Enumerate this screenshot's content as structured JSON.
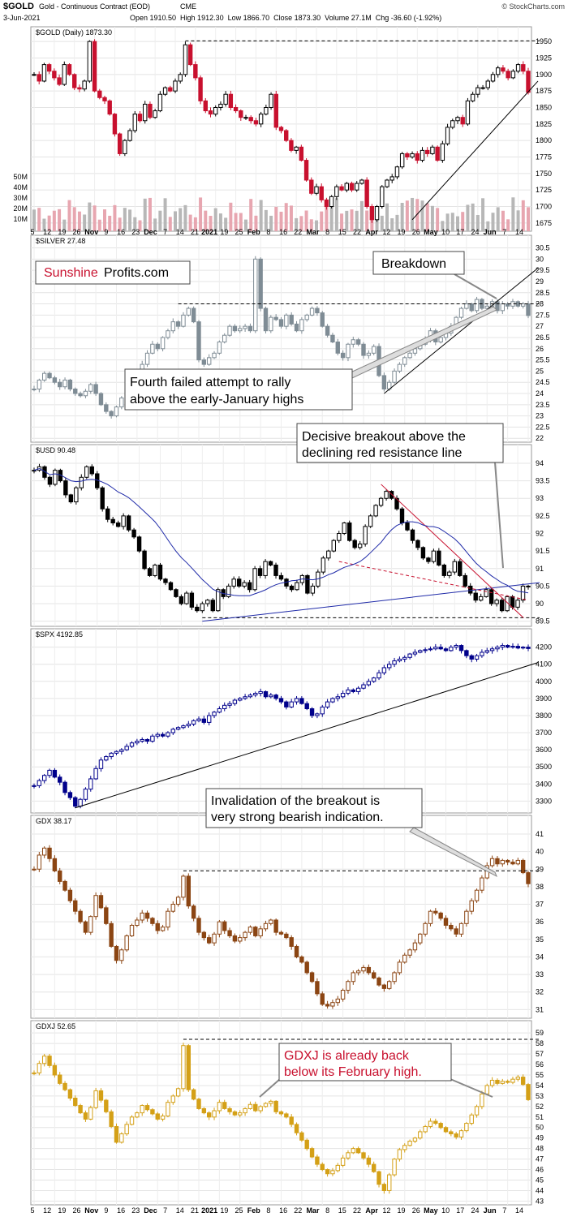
{
  "header": {
    "symbol": "$GOLD",
    "description": "Gold - Continuous Contract (EOD)",
    "exchange": "CME",
    "watermark": "© StockCharts.com",
    "date": "3-Jun-2021",
    "ohlc_text": "Open 1910.50  High 1912.30  Low 1866.70  Close 1873.30  Volume 27.1M  Chg -36.60 (-1.92%)"
  },
  "x_axis_ticks": [
    "5",
    "12",
    "19",
    "26",
    "Nov",
    "9",
    "16",
    "23",
    "Dec",
    "7",
    "14",
    "21",
    "2021",
    "19",
    "25",
    "Feb",
    "8",
    "16",
    "22",
    "Mar",
    "8",
    "15",
    "22",
    "Apr",
    "12",
    "19",
    "26",
    "May",
    "10",
    "17",
    "24",
    "Jun",
    "7",
    "14"
  ],
  "watermark_box": {
    "part1": "Sunshine",
    "part2": "Profits.com"
  },
  "annotations": {
    "breakdown": "Breakdown",
    "fourth_line1": "Fourth failed attempt to rally",
    "fourth_line2": "above the early-January highs",
    "usd_line1": "Decisive breakout above the",
    "usd_line2": "declining red resistance line",
    "gdx_line1": "Invalidation of the breakout is",
    "gdx_line2": "very strong bearish indication.",
    "gdxj_line1": "GDXJ is already back",
    "gdxj_line2": "below its February high."
  },
  "colors": {
    "up": "#000000",
    "down": "#c8102e",
    "silver": "#7f8c95",
    "usd": "#000000",
    "spx": "#00008b",
    "gdx": "#8b4513",
    "gdxj": "#d4a017",
    "ma": "#1f2aa8"
  },
  "chart_data": [
    {
      "type": "candlestick",
      "title": "$GOLD (Daily) 1873.30",
      "y_ticks": [
        1675,
        1700,
        1725,
        1750,
        1775,
        1800,
        1825,
        1850,
        1875,
        1900,
        1925,
        1950
      ],
      "ylim": [
        1665,
        1960
      ],
      "volume_ticks": [
        "50M",
        "40M",
        "30M",
        "20M",
        "10M"
      ],
      "path": [
        1900,
        1890,
        1915,
        1905,
        1895,
        1885,
        1915,
        1900,
        1880,
        1878,
        1890,
        1950,
        1875,
        1865,
        1860,
        1840,
        1810,
        1780,
        1800,
        1815,
        1840,
        1830,
        1855,
        1835,
        1845,
        1870,
        1880,
        1875,
        1890,
        1900,
        1945,
        1915,
        1895,
        1860,
        1845,
        1840,
        1850,
        1855,
        1870,
        1850,
        1845,
        1835,
        1835,
        1830,
        1825,
        1840,
        1850,
        1870,
        1820,
        1815,
        1800,
        1785,
        1790,
        1770,
        1740,
        1720,
        1730,
        1710,
        1700,
        1715,
        1730,
        1725,
        1735,
        1725,
        1735,
        1740,
        1700,
        1680,
        1700,
        1730,
        1740,
        1745,
        1760,
        1780,
        1775,
        1780,
        1770,
        1785,
        1780,
        1790,
        1770,
        1795,
        1820,
        1830,
        1835,
        1825,
        1860,
        1870,
        1880,
        1880,
        1890,
        1900,
        1910,
        1905,
        1895,
        1905,
        1915,
        1905,
        1873
      ]
    },
    {
      "type": "candlestick",
      "title": "$SILVER 27.48",
      "y_ticks": [
        22,
        22.5,
        23,
        23.5,
        24,
        24.5,
        25,
        25.5,
        26,
        26.5,
        27,
        27.5,
        28,
        28.5,
        29,
        29.5,
        30,
        30.5
      ],
      "ylim": [
        21.9,
        30.7
      ],
      "path": [
        24.2,
        24.6,
        24.9,
        24.7,
        24.5,
        24.3,
        24.6,
        24.2,
        24.0,
        23.9,
        24.1,
        24.4,
        24.0,
        23.5,
        23.2,
        23.0,
        23.4,
        23.8,
        24.2,
        24.5,
        24.8,
        25.3,
        25.8,
        26.2,
        26.0,
        26.5,
        26.8,
        27.2,
        27.0,
        27.5,
        27.8,
        27.2,
        25.5,
        25.3,
        25.6,
        25.8,
        26.3,
        26.6,
        27.0,
        26.8,
        26.9,
        27.0,
        26.8,
        30.0,
        27.8,
        26.8,
        27.4,
        27.3,
        27.0,
        27.5,
        27.1,
        26.8,
        27.3,
        27.5,
        27.8,
        27.6,
        27.0,
        26.6,
        26.3,
        25.8,
        25.6,
        26.2,
        26.4,
        26.2,
        25.7,
        25.8,
        26.1,
        24.8,
        24.2,
        24.5,
        25.0,
        25.3,
        25.6,
        25.8,
        26.0,
        26.2,
        26.4,
        26.8,
        26.3,
        26.5,
        26.7,
        27.0,
        27.4,
        27.8,
        28.0,
        27.7,
        28.2,
        27.8,
        27.9,
        28.1,
        27.7,
        28.0,
        27.9,
        28.1,
        27.9,
        28.0,
        27.48
      ]
    },
    {
      "type": "candlestick",
      "title": "$USD 90.48",
      "y_ticks": [
        89.5,
        90,
        90.5,
        91,
        91.5,
        92,
        92.5,
        93,
        93.5,
        94
      ],
      "ylim": [
        89.4,
        94.3
      ],
      "path": [
        93.8,
        93.9,
        93.6,
        93.4,
        93.8,
        93.5,
        93.1,
        92.9,
        93.3,
        93.6,
        93.9,
        93.7,
        93.3,
        92.7,
        92.4,
        92.3,
        92.2,
        92.5,
        92.1,
        91.9,
        91.5,
        91.0,
        90.8,
        91.1,
        90.7,
        90.6,
        90.4,
        90.2,
        90.0,
        90.3,
        89.9,
        89.8,
        90.0,
        90.1,
        89.8,
        90.4,
        90.2,
        90.5,
        90.7,
        90.5,
        90.6,
        90.4,
        91.0,
        90.8,
        91.2,
        91.1,
        90.8,
        90.7,
        90.5,
        90.4,
        90.6,
        90.8,
        90.3,
        90.5,
        90.9,
        91.3,
        91.5,
        91.8,
        92.0,
        92.3,
        91.8,
        91.6,
        91.7,
        92.2,
        92.5,
        92.8,
        93.0,
        93.2,
        93.0,
        92.7,
        92.3,
        92.1,
        91.8,
        91.6,
        91.3,
        91.2,
        91.5,
        91.1,
        90.8,
        90.9,
        91.2,
        90.8,
        90.5,
        90.3,
        90.1,
        90.2,
        90.4,
        90.0,
        90.1,
        89.8,
        90.2,
        89.9,
        90.1,
        90.5,
        90.48
      ]
    },
    {
      "type": "candlestick",
      "title": "$SPX 4192.85",
      "y_ticks": [
        3300,
        3400,
        3500,
        3600,
        3700,
        3800,
        3900,
        4000,
        4100,
        4200
      ],
      "ylim": [
        3240,
        4260
      ],
      "path": [
        3390,
        3420,
        3450,
        3480,
        3440,
        3410,
        3350,
        3320,
        3270,
        3310,
        3370,
        3430,
        3490,
        3540,
        3560,
        3580,
        3590,
        3600,
        3620,
        3640,
        3650,
        3660,
        3650,
        3680,
        3690,
        3680,
        3700,
        3720,
        3730,
        3740,
        3750,
        3770,
        3780,
        3760,
        3800,
        3820,
        3840,
        3860,
        3870,
        3890,
        3900,
        3910,
        3920,
        3930,
        3940,
        3910,
        3920,
        3900,
        3880,
        3850,
        3880,
        3900,
        3870,
        3840,
        3800,
        3810,
        3850,
        3880,
        3900,
        3910,
        3930,
        3950,
        3940,
        3960,
        3980,
        4000,
        4020,
        4050,
        4080,
        4100,
        4120,
        4130,
        4140,
        4160,
        4170,
        4180,
        4185,
        4190,
        4200,
        4190,
        4180,
        4200,
        4210,
        4180,
        4150,
        4130,
        4150,
        4170,
        4180,
        4190,
        4200,
        4210,
        4200,
        4205,
        4195,
        4200,
        4192
      ]
    },
    {
      "type": "candlestick",
      "title": "GDX 38.17",
      "y_ticks": [
        31,
        32,
        33,
        34,
        35,
        36,
        37,
        38,
        39,
        40,
        41
      ],
      "ylim": [
        30.6,
        41.6
      ],
      "path": [
        39.0,
        39.8,
        40.2,
        39.6,
        38.9,
        38.3,
        37.8,
        37.2,
        36.6,
        36.0,
        35.4,
        36.3,
        37.5,
        36.8,
        35.9,
        34.6,
        33.8,
        34.4,
        35.2,
        35.8,
        36.1,
        36.5,
        36.2,
        35.9,
        35.5,
        35.7,
        36.6,
        37.0,
        37.4,
        38.6,
        36.9,
        36.2,
        35.4,
        35.1,
        34.8,
        35.3,
        36.0,
        35.5,
        35.2,
        34.9,
        35.1,
        35.4,
        35.7,
        35.2,
        35.6,
        35.9,
        36.1,
        35.4,
        35.3,
        35.1,
        34.6,
        34.0,
        33.7,
        33.1,
        32.6,
        31.9,
        31.3,
        31.2,
        31.4,
        31.6,
        32.1,
        32.6,
        33.1,
        33.2,
        33.4,
        33.1,
        32.8,
        32.4,
        32.2,
        32.6,
        33.1,
        33.7,
        34.1,
        34.4,
        34.8,
        35.3,
        35.9,
        36.6,
        36.5,
        36.2,
        35.8,
        35.6,
        35.3,
        35.9,
        36.6,
        37.2,
        37.8,
        38.5,
        39.2,
        39.6,
        39.3,
        39.5,
        39.4,
        39.3,
        39.5,
        38.8,
        38.17
      ]
    },
    {
      "type": "candlestick",
      "title": "GDXJ 52.65",
      "y_ticks": [
        43,
        44,
        45,
        46,
        47,
        48,
        49,
        50,
        51,
        52,
        53,
        54,
        55,
        56,
        57,
        58,
        59
      ],
      "ylim": [
        42.8,
        59.4
      ],
      "path": [
        55.2,
        56.1,
        56.8,
        55.9,
        55.0,
        54.2,
        53.6,
        52.8,
        52.1,
        51.4,
        50.8,
        51.9,
        53.5,
        52.6,
        51.5,
        50.1,
        48.6,
        49.4,
        50.3,
        51.0,
        51.4,
        52.1,
        51.7,
        51.3,
        50.8,
        51.1,
        52.4,
        53.0,
        53.7,
        57.8,
        53.6,
        52.7,
        51.8,
        51.4,
        51.0,
        51.6,
        52.4,
        51.8,
        51.5,
        51.2,
        51.4,
        51.8,
        52.2,
        51.6,
        52.0,
        52.3,
        52.5,
        51.5,
        51.3,
        51.0,
        50.3,
        49.5,
        48.8,
        48.0,
        47.2,
        46.5,
        46.0,
        45.6,
        45.9,
        46.4,
        47.1,
        47.6,
        48.0,
        47.6,
        47.1,
        46.5,
        45.8,
        44.6,
        44.0,
        45.5,
        47.0,
        47.9,
        48.3,
        48.7,
        49.0,
        49.6,
        50.1,
        50.6,
        50.4,
        50.0,
        49.6,
        49.4,
        49.1,
        49.7,
        50.4,
        51.2,
        52.0,
        53.2,
        54.0,
        54.5,
        54.2,
        54.4,
        54.3,
        54.6,
        54.8,
        54.1,
        52.65
      ]
    }
  ]
}
